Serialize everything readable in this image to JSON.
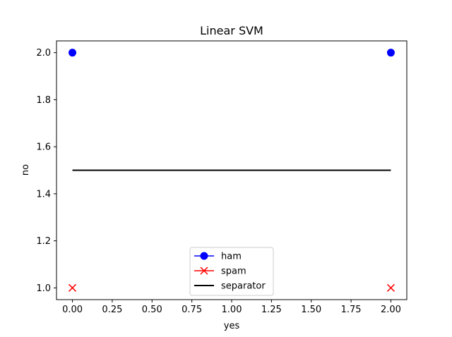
{
  "chart_data": {
    "type": "scatter",
    "title": "Linear SVM",
    "xlabel": "yes",
    "ylabel": "no",
    "xlim": [
      -0.1,
      2.1
    ],
    "ylim": [
      0.95,
      2.05
    ],
    "xticks": [
      0.0,
      0.25,
      0.5,
      0.75,
      1.0,
      1.25,
      1.5,
      1.75,
      2.0
    ],
    "xtick_labels": [
      "0.00",
      "0.25",
      "0.50",
      "0.75",
      "1.00",
      "1.25",
      "1.50",
      "1.75",
      "2.00"
    ],
    "yticks": [
      1.0,
      1.2,
      1.4,
      1.6,
      1.8,
      2.0
    ],
    "ytick_labels": [
      "1.0",
      "1.2",
      "1.4",
      "1.6",
      "1.8",
      "2.0"
    ],
    "grid": false,
    "legend_position": "lower-center",
    "series": [
      {
        "name": "ham",
        "marker": "circle",
        "color": "#0000ff",
        "x": [
          0,
          2
        ],
        "y": [
          2,
          2
        ]
      },
      {
        "name": "spam",
        "marker": "x",
        "color": "#ff0000",
        "x": [
          0,
          2
        ],
        "y": [
          1,
          1
        ]
      },
      {
        "name": "separator",
        "marker": "line",
        "color": "#000000",
        "x": [
          0,
          2
        ],
        "y": [
          1.5,
          1.5
        ]
      }
    ]
  }
}
